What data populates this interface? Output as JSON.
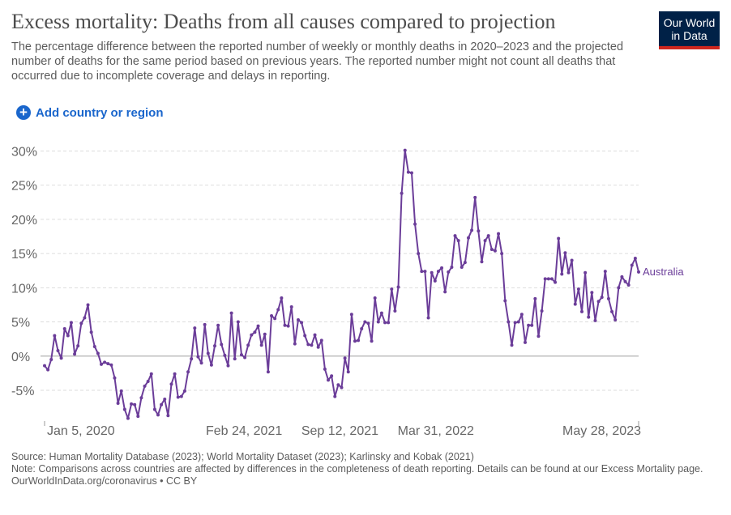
{
  "header": {
    "title": "Excess mortality: Deaths from all causes compared to projection",
    "subtitle": "The percentage difference between the reported number of weekly or monthly deaths in 2020–2023 and the projected number of deaths for the same period based on previous years. The reported number might not count all deaths that occurred due to incomplete coverage and delays in reporting.",
    "logo_line1": "Our World",
    "logo_line2": "in Data"
  },
  "controls": {
    "add_label": "Add country or region"
  },
  "footer": {
    "source": "Source: Human Mortality Database (2023); World Mortality Dataset (2023); Karlinsky and Kobak (2021)",
    "note": "Note: Comparisons across countries are affected by differences in the completeness of death reporting. Details can be found at our Excess Mortality page.",
    "credit": "OurWorldInData.org/coronavirus • CC BY"
  },
  "colors": {
    "series": "#6b3d99",
    "grid": "#dddddd",
    "zero_line": "#b0b0b0",
    "accent": "#1a66cc",
    "logo_bg": "#002147",
    "logo_bar": "#ce261e"
  },
  "chart_data": {
    "type": "line",
    "title": "",
    "xlabel": "",
    "ylabel": "",
    "ylim": [
      -9.5,
      31
    ],
    "y_ticks": [
      -5,
      0,
      5,
      10,
      15,
      20,
      25,
      30
    ],
    "y_tick_labels": [
      "-5%",
      "0%",
      "5%",
      "10%",
      "15%",
      "20%",
      "25%",
      "30%"
    ],
    "x_ticks": [
      "Jan 5, 2020",
      "Feb 24, 2021",
      "Sep 12, 2021",
      "Mar 31, 2022",
      "May 28, 2023"
    ],
    "grid": true,
    "legend": "end-of-line label",
    "series": [
      {
        "name": "Australia",
        "x_range": [
          "Jan 5, 2020",
          "May 28, 2023"
        ],
        "values": [
          -1.4,
          -2.0,
          -0.5,
          3.0,
          0.8,
          -0.3,
          4.0,
          3.0,
          4.9,
          0.3,
          1.5,
          4.8,
          5.6,
          7.5,
          3.5,
          1.4,
          0.4,
          -1.2,
          -0.9,
          -1.1,
          -1.3,
          -3.2,
          -6.9,
          -5.1,
          -7.8,
          -9.1,
          -7.0,
          -7.1,
          -8.8,
          -6.1,
          -4.4,
          -3.7,
          -2.6,
          -7.8,
          -8.6,
          -7.1,
          -6.3,
          -8.7,
          -4.1,
          -2.6,
          -6.0,
          -5.9,
          -5.1,
          -2.3,
          -0.4,
          4.1,
          -0.1,
          -1.0,
          4.6,
          0.4,
          -1.3,
          1.5,
          4.5,
          1.7,
          0.1,
          -1.4,
          6.3,
          -0.4,
          5.0,
          0.2,
          -0.2,
          1.6,
          3.1,
          3.5,
          4.4,
          1.6,
          3.2,
          -2.3,
          5.9,
          5.5,
          6.8,
          8.5,
          4.5,
          4.4,
          7.2,
          1.8,
          5.3,
          4.9,
          3.0,
          1.7,
          1.6,
          3.1,
          1.3,
          2.3,
          -1.9,
          -3.5,
          -2.9,
          -5.9,
          -4.2,
          -4.6,
          -0.3,
          -2.3,
          6.1,
          2.2,
          2.3,
          4.0,
          5.0,
          4.8,
          2.2,
          8.5,
          5.0,
          6.3,
          4.9,
          4.9,
          9.8,
          6.6,
          10.1,
          23.8,
          30.1,
          26.9,
          26.8,
          19.3,
          15.0,
          12.4,
          12.4,
          5.6,
          12.2,
          11.0,
          12.4,
          12.9,
          9.4,
          12.3,
          13.0,
          17.6,
          16.9,
          13.0,
          13.7,
          17.3,
          18.4,
          23.2,
          18.3,
          13.8,
          16.9,
          17.6,
          15.6,
          15.4,
          17.9,
          15.0,
          8.1,
          5.0,
          1.6,
          4.9,
          5.0,
          6.1,
          2.0,
          4.5,
          4.5,
          8.4,
          2.9,
          6.6,
          11.3,
          11.3,
          11.3,
          10.8,
          17.2,
          12.0,
          15.1,
          12.2,
          14.0,
          7.6,
          9.8,
          6.5,
          12.2,
          5.7,
          9.3,
          5.2,
          8.0,
          8.6,
          12.4,
          8.4,
          6.5,
          5.3,
          10.0,
          11.6,
          10.9,
          10.4,
          13.3,
          14.3,
          12.3
        ]
      }
    ]
  }
}
